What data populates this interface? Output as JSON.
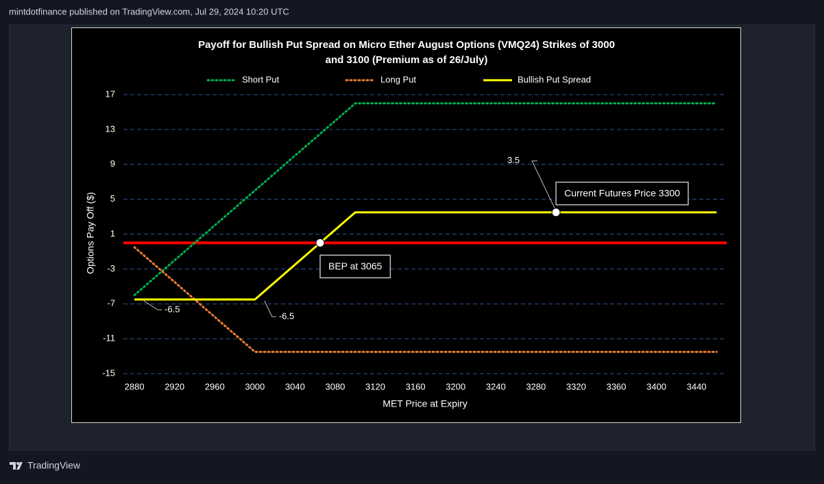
{
  "header": "mintdotfinance published on TradingView.com, Jul 29, 2024 10:20 UTC",
  "footer": "TradingView",
  "chart_data": {
    "type": "line",
    "title": "Payoff for Bullish Put Spread on Micro Ether August Options (VMQ24) Strikes of 3000",
    "subtitle": "and 3100 (Premium as of 26/July)",
    "x_label": "MET Price at Expiry",
    "y_label": "Options Pay Off ($)",
    "x": [
      2880,
      3000,
      3100,
      3460
    ],
    "series": [
      {
        "name": "Short Put",
        "color": "#00b050",
        "style": "dotted",
        "values": [
          -6,
          6,
          16,
          16
        ]
      },
      {
        "name": "Long Put",
        "color": "#ed7d31",
        "style": "dotted",
        "values": [
          -0.5,
          -12.5,
          -12.5,
          -12.5
        ]
      },
      {
        "name": "Bullish Put Spread",
        "color": "#ffff00",
        "style": "solid",
        "values": [
          -6.5,
          -6.5,
          3.5,
          3.5
        ]
      }
    ],
    "reference_line": {
      "value": 0,
      "color": "#ff0000"
    },
    "annotations": [
      {
        "text": "-6.5",
        "x": 2880,
        "y": -6.5,
        "style": "label"
      },
      {
        "text": "-6.5",
        "x": 3000,
        "y": -6.5,
        "style": "label"
      },
      {
        "text": "3.5",
        "x": 3300,
        "y": 3.5,
        "style": "label"
      },
      {
        "text": "BEP at 3065",
        "x": 3065,
        "y": 0,
        "style": "box"
      },
      {
        "text": "Current Futures Price 3300",
        "x": 3300,
        "y": 3.5,
        "style": "box"
      }
    ],
    "xlim": [
      2869,
      3470
    ],
    "ylim": [
      -15,
      17
    ],
    "xticks": [
      2880,
      2920,
      2960,
      3000,
      3040,
      3080,
      3120,
      3160,
      3200,
      3240,
      3280,
      3320,
      3360,
      3400,
      3440
    ],
    "yticks": [
      -15,
      -11,
      -7,
      -3,
      1,
      5,
      9,
      13,
      17
    ],
    "grid": true,
    "legend": "top"
  }
}
